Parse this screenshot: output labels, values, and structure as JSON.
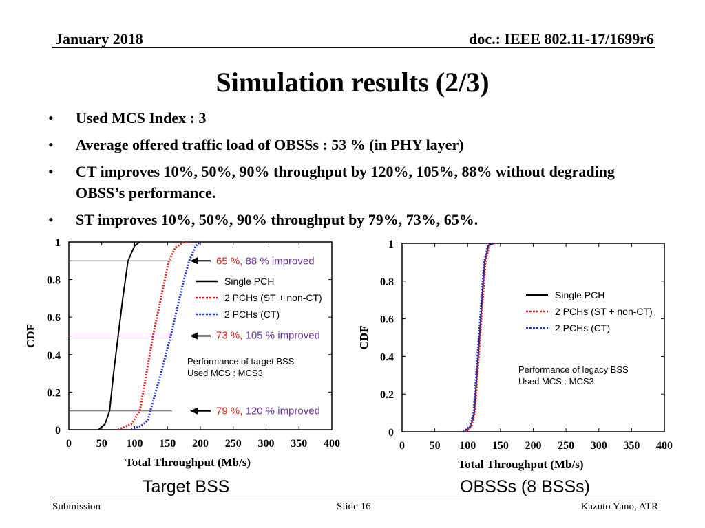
{
  "header": {
    "date": "January 2018",
    "doc": "doc.: IEEE 802.11-17/1699r6"
  },
  "title": "Simulation results (2/3)",
  "bullets": [
    "Used MCS Index : 3",
    "Average offered traffic load of OBSSs : 53 % (in PHY layer)",
    "CT improves 10%, 50%, 90% throughput by 120%, 105%, 88% without degrading OBSS’s performance.",
    "ST improves 10%, 50%, 90% throughput by 79%, 73%, 65%."
  ],
  "chart_data": [
    {
      "type": "line",
      "caption": "Target BSS",
      "xlabel": "Total Throughput (Mb/s)",
      "ylabel": "CDF",
      "xlim": [
        0,
        400
      ],
      "ylim": [
        0,
        1
      ],
      "xticks": [
        0,
        50,
        100,
        150,
        200,
        250,
        300,
        350,
        400
      ],
      "yticks": [
        0,
        0.2,
        0.4,
        0.6,
        0.8,
        1
      ],
      "yticklabels": [
        "0",
        "0.2",
        "0.4",
        "0.6",
        "0.8",
        "1"
      ],
      "series": [
        {
          "name": "Single PCH",
          "color": "#000000",
          "style": "solid",
          "x": [
            45,
            55,
            62,
            68,
            75,
            82,
            90,
            100,
            108
          ],
          "y": [
            0,
            0.03,
            0.1,
            0.3,
            0.5,
            0.7,
            0.9,
            0.98,
            1
          ]
        },
        {
          "name": "2 PCHs (ST + non-CT)",
          "color": "#e02020",
          "style": "dotted",
          "x": [
            75,
            95,
            108,
            118,
            128,
            140,
            152,
            162,
            175,
            185
          ],
          "y": [
            0,
            0.03,
            0.1,
            0.3,
            0.5,
            0.7,
            0.9,
            0.97,
            1,
            1
          ]
        },
        {
          "name": "2 PCHs (CT)",
          "color": "#1f2fd0",
          "style": "dotted",
          "x": [
            95,
            110,
            120,
            140,
            155,
            165,
            175,
            183,
            193,
            200
          ],
          "y": [
            0,
            0.02,
            0.05,
            0.3,
            0.5,
            0.65,
            0.8,
            0.9,
            0.98,
            1
          ]
        }
      ],
      "reference_lines": [
        0.9,
        0.5,
        0.1
      ],
      "annotations": [
        {
          "y": 0.9,
          "parts": [
            {
              "text": "65 %, ",
              "color": "#e02020"
            },
            {
              "text": "88 % improved",
              "color": "#7030a0"
            }
          ]
        },
        {
          "y": 0.5,
          "parts": [
            {
              "text": "73 %, ",
              "color": "#e02020"
            },
            {
              "text": "105 % improved",
              "color": "#7030a0"
            }
          ]
        },
        {
          "y": 0.1,
          "parts": [
            {
              "text": "79 %, ",
              "color": "#e02020"
            },
            {
              "text": "120 % improved",
              "color": "#7030a0"
            }
          ]
        }
      ],
      "note": [
        "Performance of target BSS",
        "Used MCS : MCS3"
      ]
    },
    {
      "type": "line",
      "caption": "OBSSs (8 BSSs)",
      "xlabel": "Total Throughput (Mb/s)",
      "ylabel": "CDF",
      "xlim": [
        0,
        400
      ],
      "ylim": [
        0,
        1
      ],
      "xticks": [
        0,
        50,
        100,
        150,
        200,
        250,
        300,
        350,
        400
      ],
      "yticks": [
        0,
        0.2,
        0.4,
        0.6,
        0.8,
        1
      ],
      "yticklabels": [
        "0",
        "0.2",
        "0.4",
        "0.6",
        "0.8",
        "1"
      ],
      "series": [
        {
          "name": "Single PCH",
          "color": "#000000",
          "style": "solid",
          "x": [
            95,
            105,
            110,
            114,
            118,
            122,
            126,
            132,
            140
          ],
          "y": [
            0,
            0.03,
            0.1,
            0.3,
            0.5,
            0.7,
            0.9,
            0.99,
            1
          ]
        },
        {
          "name": "2 PCHs (ST + non-CT)",
          "color": "#e02020",
          "style": "dotted",
          "x": [
            97,
            106,
            111,
            115,
            119,
            123,
            127,
            133,
            141
          ],
          "y": [
            0,
            0.03,
            0.1,
            0.3,
            0.5,
            0.7,
            0.9,
            0.99,
            1
          ]
        },
        {
          "name": "2 PCHs (CT)",
          "color": "#1f2fd0",
          "style": "dotted",
          "x": [
            93,
            104,
            109,
            113,
            117,
            121,
            125,
            131,
            139
          ],
          "y": [
            0,
            0.03,
            0.1,
            0.3,
            0.5,
            0.7,
            0.9,
            0.99,
            1
          ]
        }
      ],
      "reference_lines": [],
      "annotations": [],
      "note": [
        "Performance of legacy BSS",
        "Used MCS : MCS3"
      ]
    }
  ],
  "footer": {
    "left": "Submission",
    "center": "Slide 16",
    "right": "Kazuto Yano, ATR"
  }
}
